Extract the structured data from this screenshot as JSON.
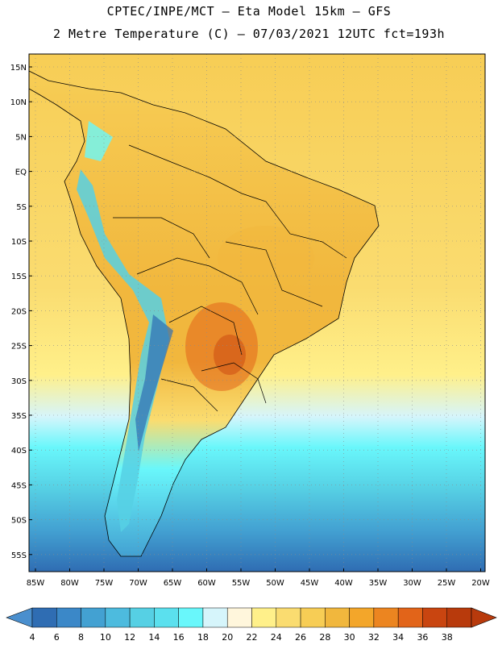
{
  "header": {
    "line1": "CPTEC/INPE/MCT –  Eta Model 15km – GFS",
    "line2": "2 Metre Temperature (C) – 07/03/2021 12UTC fct=193h"
  },
  "axes": {
    "lat_labels": [
      "15N",
      "10N",
      "5N",
      "EQ",
      "5S",
      "10S",
      "15S",
      "20S",
      "25S",
      "30S",
      "35S",
      "40S",
      "45S",
      "50S",
      "55S"
    ],
    "lon_labels": [
      "85W",
      "80W",
      "75W",
      "70W",
      "65W",
      "60W",
      "55W",
      "50W",
      "45W",
      "40W",
      "35W",
      "30W",
      "25W",
      "20W"
    ]
  },
  "colorbar": {
    "labels": [
      "4",
      "6",
      "8",
      "10",
      "12",
      "14",
      "16",
      "18",
      "20",
      "22",
      "24",
      "26",
      "28",
      "30",
      "32",
      "34",
      "36",
      "38"
    ],
    "low_end_color": "#4a8fce",
    "high_end_color": "#b83a0c",
    "colors": [
      "#2f6db3",
      "#3b88c8",
      "#43a1d2",
      "#4dbbde",
      "#56d0e4",
      "#5be0ee",
      "#69f7fb",
      "#d6f5fb",
      "#fff6dc",
      "#fff08a",
      "#fadc70",
      "#f7cd55",
      "#f1b73d",
      "#f3a62a",
      "#ec8520",
      "#e26419",
      "#c94510",
      "#b83a0c"
    ]
  },
  "map_colors": {
    "ocean_warm": "#fadc70",
    "ocean_mid": "#f7cd55",
    "ocean_cool": "#fff08a",
    "cold_band": "#69f7fb",
    "cold_deep": "#3b88c8",
    "land_warm": "#f1b73d",
    "land_hot": "#e26419",
    "andes": "#56d0e4",
    "border": "#000000",
    "grid": "#8c8c8c"
  }
}
